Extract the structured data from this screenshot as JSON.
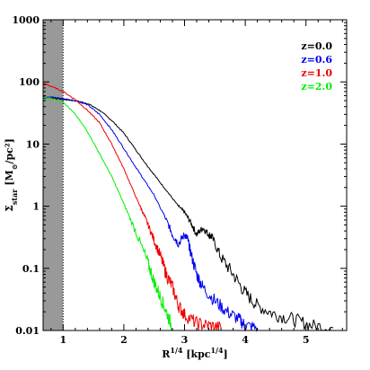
{
  "chart_data": {
    "type": "line",
    "xlabel": "R^{1/4} [kpc^{1/4}]",
    "xlabel_parts": {
      "main": "R",
      "sup1": "1/4",
      "mid": " [kpc",
      "sup2": "1/4",
      "end": "]"
    },
    "ylabel_parts": {
      "main": "Σ",
      "sub": "star",
      "rest": " [M",
      "sub2": "⊙",
      "end": "/pc²]"
    },
    "xlim": [
      0.67,
      5.67
    ],
    "ylim": [
      0.01,
      1000
    ],
    "yscale": "log",
    "grid": false,
    "legend_position": "top-right",
    "x_ticks": [
      1,
      2,
      3,
      4,
      5
    ],
    "x_tick_labels": [
      "1",
      "2",
      "3",
      "4",
      "5"
    ],
    "y_ticks": [
      0.01,
      0.1,
      1,
      10,
      100,
      1000
    ],
    "y_tick_labels": [
      "0.01",
      "0.1",
      "1",
      "10",
      "100",
      "1000"
    ],
    "shaded_region": {
      "x": [
        0.67,
        1.0
      ],
      "color": "#999999"
    },
    "vline": {
      "x": 1.0,
      "style": "dotted"
    },
    "series": [
      {
        "name": "z=0.0",
        "color": "#000000",
        "x": [
          0.67,
          0.8,
          1.0,
          1.2,
          1.4,
          1.6,
          1.8,
          2.0,
          2.2,
          2.35,
          2.5,
          2.7,
          2.9,
          3.0,
          3.1,
          3.2,
          3.3,
          3.4,
          3.45,
          3.6,
          3.8,
          4.0,
          4.2,
          4.5,
          4.8,
          5.1,
          5.45
        ],
        "y": [
          55,
          56,
          52,
          50,
          45,
          35,
          24,
          15,
          8,
          5,
          3.2,
          1.8,
          1.0,
          0.8,
          0.55,
          0.35,
          0.45,
          0.35,
          0.32,
          0.15,
          0.08,
          0.04,
          0.025,
          0.018,
          0.015,
          0.012,
          0.011
        ]
      },
      {
        "name": "z=0.6",
        "color": "#0000ee",
        "x": [
          0.67,
          0.8,
          1.0,
          1.2,
          1.4,
          1.6,
          1.8,
          2.0,
          2.2,
          2.35,
          2.5,
          2.7,
          2.8,
          2.9,
          3.0,
          3.05,
          3.1,
          3.2,
          3.3,
          3.5,
          3.7,
          3.9,
          4.0,
          4.2
        ],
        "y": [
          58,
          57,
          54,
          50,
          43,
          30,
          17,
          8.5,
          4.2,
          2.5,
          1.5,
          0.6,
          0.35,
          0.25,
          0.35,
          0.3,
          0.18,
          0.08,
          0.05,
          0.03,
          0.02,
          0.015,
          0.012,
          0.011
        ]
      },
      {
        "name": "z=1.0",
        "color": "#ee0000",
        "x": [
          0.67,
          0.8,
          1.0,
          1.2,
          1.4,
          1.6,
          1.8,
          2.0,
          2.2,
          2.3,
          2.4,
          2.5,
          2.6,
          2.7,
          2.8,
          2.9,
          3.0,
          3.2,
          3.4,
          3.6
        ],
        "y": [
          95,
          85,
          70,
          52,
          35,
          22,
          10,
          4.0,
          1.4,
          0.85,
          0.5,
          0.28,
          0.16,
          0.08,
          0.05,
          0.025,
          0.018,
          0.013,
          0.012,
          0.011
        ]
      },
      {
        "name": "z=2.0",
        "color": "#00ee00",
        "x": [
          0.67,
          0.8,
          1.0,
          1.2,
          1.4,
          1.6,
          1.8,
          2.0,
          2.2,
          2.4,
          2.5,
          2.6,
          2.7,
          2.8
        ],
        "y": [
          56,
          55,
          48,
          30,
          16,
          7,
          3.0,
          1.1,
          0.38,
          0.12,
          0.06,
          0.035,
          0.02,
          0.011
        ]
      }
    ]
  }
}
